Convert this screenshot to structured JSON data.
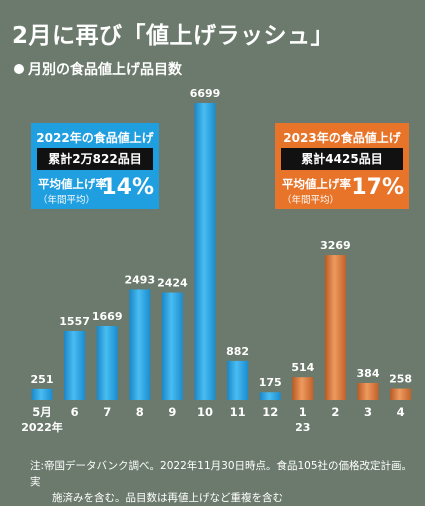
{
  "title": "2月に再び「値上げラッシュ」",
  "subtitle": "月別の食品値上げ品目数",
  "box_2022": {
    "title": "2022年の食品値上げ",
    "total": "累計2万822品目",
    "rate_label": "平均値上げ率",
    "rate_sub": "（年間平均）",
    "rate_value": "14%"
  },
  "box_2023": {
    "title": "2023年の食品値上げ",
    "total": "累計4425品目",
    "rate_label": "平均値上げ率",
    "rate_sub": "（年間平均）",
    "rate_value": "17%"
  },
  "note": {
    "line1": "注:帝国データバンク調べ。2022年11月30日時点。食品105社の価格改定計画。実",
    "line2": "施済みを含む。品目数は再値上げなど重複を含む"
  },
  "colors": {
    "background": "#6b7a6c",
    "bar_2022": "#2aa6e6",
    "bar_2023": "#e07a3a",
    "box_2022": "#1f9ee0",
    "box_2023": "#e8742a"
  },
  "chart_data": {
    "type": "bar",
    "categories": [
      "5",
      "6",
      "7",
      "8",
      "9",
      "10",
      "11",
      "12",
      "1",
      "2",
      "3",
      "4"
    ],
    "category_sublabels": [
      "2022年",
      "",
      "",
      "",
      "",
      "",
      "",
      "",
      "23",
      "",
      "",
      ""
    ],
    "values": [
      251,
      1557,
      1669,
      2493,
      2424,
      6699,
      882,
      175,
      514,
      3269,
      384,
      258
    ],
    "years": [
      2022,
      2022,
      2022,
      2022,
      2022,
      2022,
      2022,
      2022,
      2023,
      2023,
      2023,
      2023
    ],
    "first_tick_label": "5月",
    "ylim": [
      0,
      6699
    ],
    "grid": false,
    "legend": "none"
  }
}
